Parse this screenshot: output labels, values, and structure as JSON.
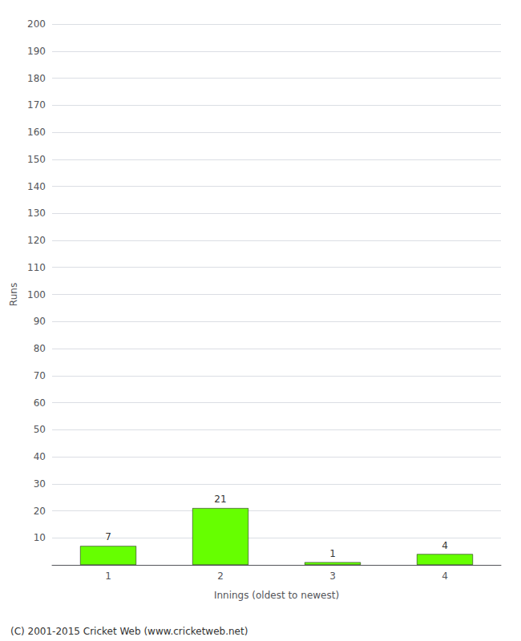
{
  "chart_data": {
    "type": "bar",
    "categories": [
      "1",
      "2",
      "3",
      "4"
    ],
    "values": [
      7,
      21,
      1,
      4
    ],
    "color": "#66ff00",
    "xlabel": "Innings (oldest to newest)",
    "ylabel": "Runs",
    "ylim": [
      0,
      200
    ],
    "yticks": [
      {
        "value": 0,
        "label": ""
      },
      10,
      20,
      30,
      40,
      50,
      60,
      70,
      80,
      90,
      100,
      110,
      120,
      130,
      140,
      150,
      160,
      170,
      180,
      190,
      200
    ],
    "grid": true,
    "data_labels": true,
    "annotations": [
      "(C) 2001-2015 Cricket Web (www.cricketweb.net)"
    ]
  }
}
